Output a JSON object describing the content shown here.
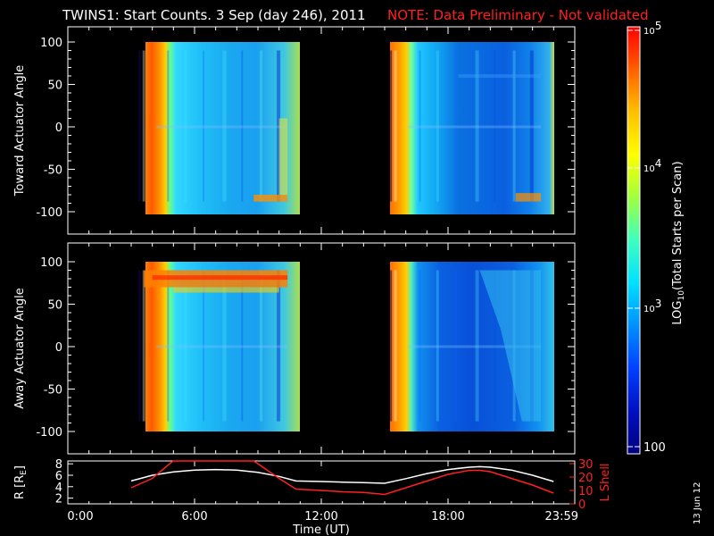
{
  "header": {
    "title": "TWINS1: Start Counts.  3 Sep (day 246), 2011",
    "note": "NOTE: Data Preliminary - Not validated",
    "note_color": "#ff2020"
  },
  "side_date": "13 Jun 12",
  "chart_data": [
    {
      "type": "heatmap",
      "ylabel": "Toward Actuator Angle",
      "xlim": [
        0,
        24
      ],
      "ylim": [
        -110,
        110
      ],
      "yticks": [
        "100",
        "50",
        "0",
        "-50",
        "-100"
      ],
      "data_blocks": [
        {
          "t_start": 3.1,
          "t_end": 10.4,
          "angle_start": -88,
          "angle_end": 90
        },
        {
          "t_start": 15.0,
          "t_end": 22.4,
          "angle_start": -88,
          "angle_end": 90
        }
      ]
    },
    {
      "type": "heatmap",
      "ylabel": "Away Actuator Angle",
      "xlim": [
        0,
        24
      ],
      "ylim": [
        -110,
        110
      ],
      "yticks": [
        "100",
        "50",
        "0",
        "-50",
        "-100"
      ],
      "data_blocks": [
        {
          "t_start": 3.1,
          "t_end": 10.4,
          "angle_start": -88,
          "angle_end": 90
        },
        {
          "t_start": 15.0,
          "t_end": 22.4,
          "angle_start": -88,
          "angle_end": 90
        }
      ]
    },
    {
      "type": "line",
      "ylabel_left": "R [R",
      "ylabel_left_sub": "E",
      "ylabel_left_end": "]",
      "ylabel_right": "L Shell",
      "xlabel": "Time (UT)",
      "xticks": [
        "0:00",
        "6:00",
        "12:00",
        "18:00",
        "23:59"
      ],
      "xlim": [
        0,
        24
      ],
      "ylim_left": [
        1,
        8.5
      ],
      "ylim_right": [
        0,
        32
      ],
      "yticks_left": [
        "2",
        "4",
        "6",
        "8"
      ],
      "yticks_right": [
        "0",
        "10",
        "20",
        "30"
      ],
      "series": [
        {
          "color": "#ffffff",
          "axis": "left",
          "x": [
            3,
            4,
            5,
            6,
            7,
            8,
            9,
            10,
            10.8,
            12,
            13,
            14,
            15,
            16,
            17,
            18,
            19,
            19.5,
            20,
            21,
            22,
            23
          ],
          "y": [
            5.0,
            6.0,
            6.6,
            6.9,
            7.0,
            6.9,
            6.5,
            5.8,
            5.0,
            4.9,
            4.8,
            4.7,
            4.6,
            5.4,
            6.3,
            7.0,
            7.4,
            7.5,
            7.4,
            6.9,
            6.0,
            4.9
          ]
        },
        {
          "color": "#ff2020",
          "axis": "right",
          "x": [
            3,
            4,
            4.9,
            5.0,
            8.8,
            8.9,
            10,
            10.8,
            12,
            13,
            14,
            15,
            16,
            17,
            18,
            19,
            19.5,
            20,
            21,
            22,
            23
          ],
          "y": [
            12,
            19,
            31,
            32,
            32,
            31,
            19,
            11,
            10,
            9,
            8.5,
            7,
            12,
            17,
            22,
            25,
            25,
            24,
            19,
            14,
            8
          ]
        }
      ]
    }
  ],
  "colorbar": {
    "label": "LOG",
    "label_sub": "10",
    "label_rest": "(Total Starts per Scan)",
    "ticks": [
      "10",
      "10",
      "10",
      "100"
    ],
    "tick_exponents": [
      "5",
      "4",
      "3",
      ""
    ],
    "colors": [
      "#ff0000",
      "#ff6000",
      "#ffc000",
      "#ffff00",
      "#a0ff40",
      "#40ffc0",
      "#00e0ff",
      "#0090ff",
      "#0040ff",
      "#0010c0",
      "#000080"
    ]
  }
}
